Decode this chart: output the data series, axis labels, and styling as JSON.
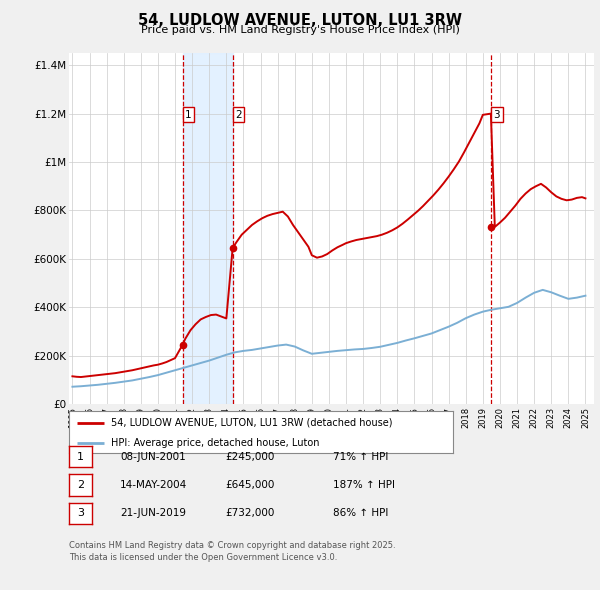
{
  "title": "54, LUDLOW AVENUE, LUTON, LU1 3RW",
  "subtitle": "Price paid vs. HM Land Registry's House Price Index (HPI)",
  "background_color": "#f0f0f0",
  "plot_bg_color": "#ffffff",
  "red_line_label": "54, LUDLOW AVENUE, LUTON, LU1 3RW (detached house)",
  "blue_line_label": "HPI: Average price, detached house, Luton",
  "footnote1": "Contains HM Land Registry data © Crown copyright and database right 2025.",
  "footnote2": "This data is licensed under the Open Government Licence v3.0.",
  "transactions": [
    {
      "num": 1,
      "date": "08-JUN-2001",
      "price": "£245,000",
      "pct": "71% ↑ HPI",
      "year": 2001.44,
      "price_val": 245000
    },
    {
      "num": 2,
      "date": "14-MAY-2004",
      "price": "£645,000",
      "pct": "187% ↑ HPI",
      "year": 2004.37,
      "price_val": 645000
    },
    {
      "num": 3,
      "date": "21-JUN-2019",
      "price": "£732,000",
      "pct": "86% ↑ HPI",
      "year": 2019.47,
      "price_val": 732000
    }
  ],
  "red_line_color": "#cc0000",
  "blue_line_color": "#7bafd4",
  "vline_color": "#cc0000",
  "shade_color": "#ddeeff",
  "xlim": [
    1994.8,
    2025.5
  ],
  "ylim": [
    0,
    1450000
  ],
  "yticks": [
    0,
    200000,
    400000,
    600000,
    800000,
    1000000,
    1200000,
    1400000
  ],
  "ytick_labels": [
    "£0",
    "£200K",
    "£400K",
    "£600K",
    "£800K",
    "£1M",
    "£1.2M",
    "£1.4M"
  ],
  "xticks": [
    1995,
    1996,
    1997,
    1998,
    1999,
    2000,
    2001,
    2002,
    2003,
    2004,
    2005,
    2006,
    2007,
    2008,
    2009,
    2010,
    2011,
    2012,
    2013,
    2014,
    2015,
    2016,
    2017,
    2018,
    2019,
    2020,
    2021,
    2022,
    2023,
    2024,
    2025
  ],
  "red_x": [
    1995.0,
    1995.25,
    1995.5,
    1995.75,
    1996.0,
    1996.25,
    1996.5,
    1996.75,
    1997.0,
    1997.25,
    1997.5,
    1997.75,
    1998.0,
    1998.25,
    1998.5,
    1998.75,
    1999.0,
    1999.25,
    1999.5,
    1999.75,
    2000.0,
    2000.25,
    2000.5,
    2000.75,
    2001.0,
    2001.44,
    2001.6,
    2001.9,
    2002.2,
    2002.5,
    2002.8,
    2003.1,
    2003.4,
    2003.7,
    2004.0,
    2004.37,
    2004.6,
    2004.9,
    2005.2,
    2005.5,
    2005.8,
    2006.1,
    2006.4,
    2006.7,
    2007.0,
    2007.3,
    2007.6,
    2007.9,
    2008.2,
    2008.5,
    2008.8,
    2009.0,
    2009.3,
    2009.6,
    2009.9,
    2010.2,
    2010.5,
    2010.8,
    2011.0,
    2011.3,
    2011.6,
    2011.9,
    2012.2,
    2012.5,
    2012.8,
    2013.1,
    2013.4,
    2013.7,
    2014.0,
    2014.3,
    2014.6,
    2014.9,
    2015.2,
    2015.5,
    2015.8,
    2016.1,
    2016.4,
    2016.7,
    2017.0,
    2017.3,
    2017.6,
    2017.9,
    2018.2,
    2018.5,
    2018.8,
    2019.0,
    2019.47,
    2019.7,
    2020.0,
    2020.3,
    2020.6,
    2020.9,
    2021.2,
    2021.5,
    2021.8,
    2022.1,
    2022.4,
    2022.7,
    2023.0,
    2023.3,
    2023.6,
    2023.9,
    2024.2,
    2024.5,
    2024.8,
    2025.0
  ],
  "red_y": [
    115000,
    113000,
    112000,
    114000,
    116000,
    118000,
    120000,
    122000,
    124000,
    126000,
    128000,
    131000,
    134000,
    137000,
    140000,
    144000,
    148000,
    152000,
    156000,
    160000,
    163000,
    168000,
    174000,
    182000,
    190000,
    245000,
    270000,
    305000,
    330000,
    350000,
    360000,
    368000,
    370000,
    362000,
    354000,
    645000,
    670000,
    700000,
    720000,
    740000,
    755000,
    768000,
    778000,
    785000,
    790000,
    795000,
    775000,
    740000,
    710000,
    680000,
    650000,
    615000,
    605000,
    610000,
    620000,
    635000,
    648000,
    658000,
    665000,
    672000,
    678000,
    682000,
    686000,
    690000,
    694000,
    700000,
    708000,
    718000,
    730000,
    745000,
    762000,
    780000,
    798000,
    818000,
    840000,
    862000,
    886000,
    912000,
    940000,
    970000,
    1002000,
    1040000,
    1080000,
    1120000,
    1160000,
    1195000,
    1200000,
    732000,
    750000,
    770000,
    795000,
    820000,
    848000,
    870000,
    888000,
    900000,
    910000,
    895000,
    875000,
    858000,
    848000,
    842000,
    845000,
    852000,
    855000,
    850000
  ],
  "blue_x": [
    1995.0,
    1995.5,
    1996.0,
    1996.5,
    1997.0,
    1997.5,
    1998.0,
    1998.5,
    1999.0,
    1999.5,
    2000.0,
    2000.5,
    2001.0,
    2001.5,
    2002.0,
    2002.5,
    2003.0,
    2003.5,
    2004.0,
    2004.5,
    2005.0,
    2005.5,
    2006.0,
    2006.5,
    2007.0,
    2007.5,
    2008.0,
    2008.5,
    2009.0,
    2009.5,
    2010.0,
    2010.5,
    2011.0,
    2011.5,
    2012.0,
    2012.5,
    2013.0,
    2013.5,
    2014.0,
    2014.5,
    2015.0,
    2015.5,
    2016.0,
    2016.5,
    2017.0,
    2017.5,
    2018.0,
    2018.5,
    2019.0,
    2019.5,
    2020.0,
    2020.5,
    2021.0,
    2021.5,
    2022.0,
    2022.5,
    2023.0,
    2023.5,
    2024.0,
    2024.5,
    2025.0
  ],
  "blue_y": [
    72000,
    74000,
    77000,
    80000,
    84000,
    88000,
    93000,
    98000,
    105000,
    112000,
    120000,
    130000,
    140000,
    150000,
    160000,
    170000,
    180000,
    192000,
    204000,
    214000,
    220000,
    224000,
    230000,
    236000,
    242000,
    246000,
    238000,
    222000,
    208000,
    212000,
    216000,
    220000,
    223000,
    226000,
    228000,
    232000,
    237000,
    245000,
    253000,
    263000,
    272000,
    282000,
    292000,
    306000,
    320000,
    336000,
    355000,
    370000,
    382000,
    390000,
    396000,
    402000,
    418000,
    440000,
    460000,
    472000,
    462000,
    448000,
    435000,
    440000,
    448000
  ]
}
